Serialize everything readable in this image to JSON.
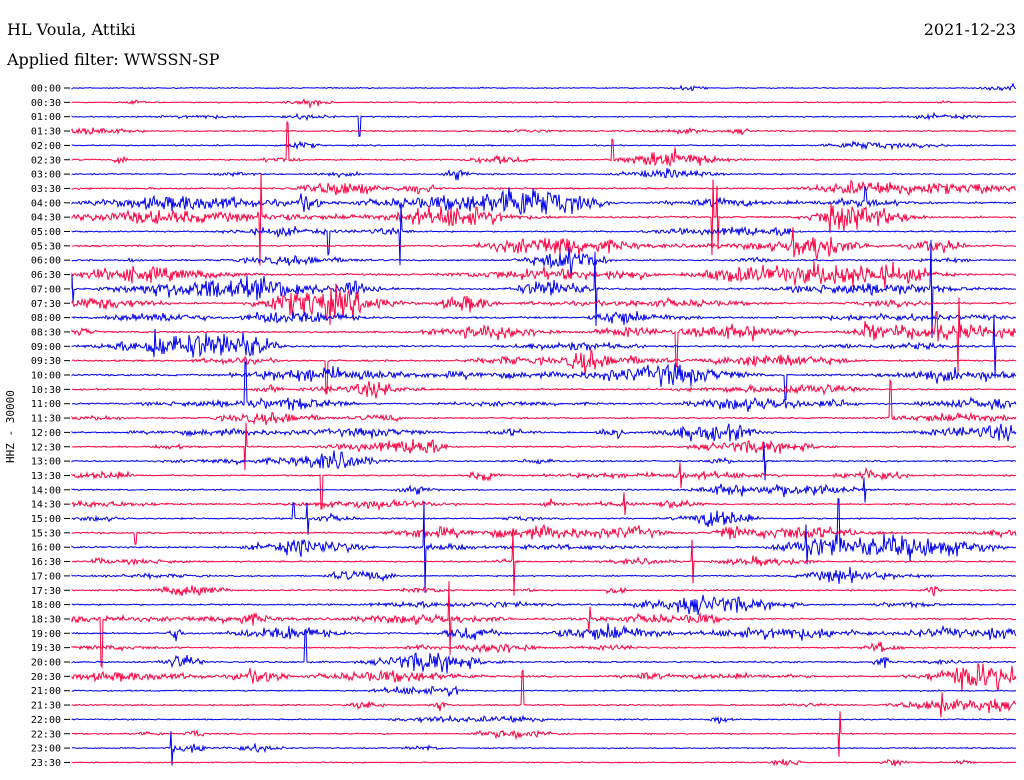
{
  "header": {
    "station": "HL Voula, Attiki",
    "date": "2021-12-23",
    "filter_prefix": "Applied filter: ",
    "filter_name": "WWSSN-SP"
  },
  "axis": {
    "channel_label": "HHZ - 30000"
  },
  "colors": {
    "trace_a": "#0000ee",
    "trace_b": "#ff0040"
  },
  "chart_data": {
    "type": "line",
    "title": "",
    "y_tick_labels": [
      "00:00",
      "00:30",
      "01:00",
      "01:30",
      "02:00",
      "02:30",
      "03:00",
      "03:30",
      "04:00",
      "04:30",
      "05:00",
      "05:30",
      "06:00",
      "06:30",
      "07:00",
      "07:30",
      "08:00",
      "08:30",
      "09:00",
      "09:30",
      "10:00",
      "10:30",
      "11:00",
      "11:30",
      "12:00",
      "12:30",
      "13:00",
      "13:30",
      "14:00",
      "14:30",
      "15:00",
      "15:30",
      "16:00",
      "16:30",
      "17:00",
      "17:30",
      "18:00",
      "18:30",
      "19:00",
      "19:30",
      "20:00",
      "20:30",
      "21:00",
      "21:30",
      "22:00",
      "22:30",
      "23:00",
      "23:30"
    ],
    "ylabel": "HHZ - 30000",
    "xlabel": "",
    "series": [
      {
        "name": "",
        "color": "#0000ee",
        "rows": "even (00:00, 01:00, ...)"
      },
      {
        "name": "",
        "color": "#ff0040",
        "rows": "odd (00:30, 01:30, ...)"
      }
    ],
    "row_activity": [
      0.15,
      0.2,
      0.25,
      0.4,
      0.3,
      0.5,
      0.4,
      0.9,
      1.0,
      0.9,
      0.5,
      0.8,
      0.7,
      1.0,
      1.0,
      1.0,
      1.0,
      0.9,
      0.9,
      0.8,
      0.9,
      0.6,
      0.7,
      0.6,
      0.9,
      0.6,
      0.6,
      0.6,
      0.5,
      0.7,
      0.6,
      0.9,
      0.9,
      0.6,
      0.5,
      0.5,
      0.6,
      0.9,
      0.9,
      0.5,
      0.8,
      0.9,
      0.4,
      0.5,
      0.3,
      0.3,
      0.2,
      0.2
    ],
    "grid": false
  }
}
